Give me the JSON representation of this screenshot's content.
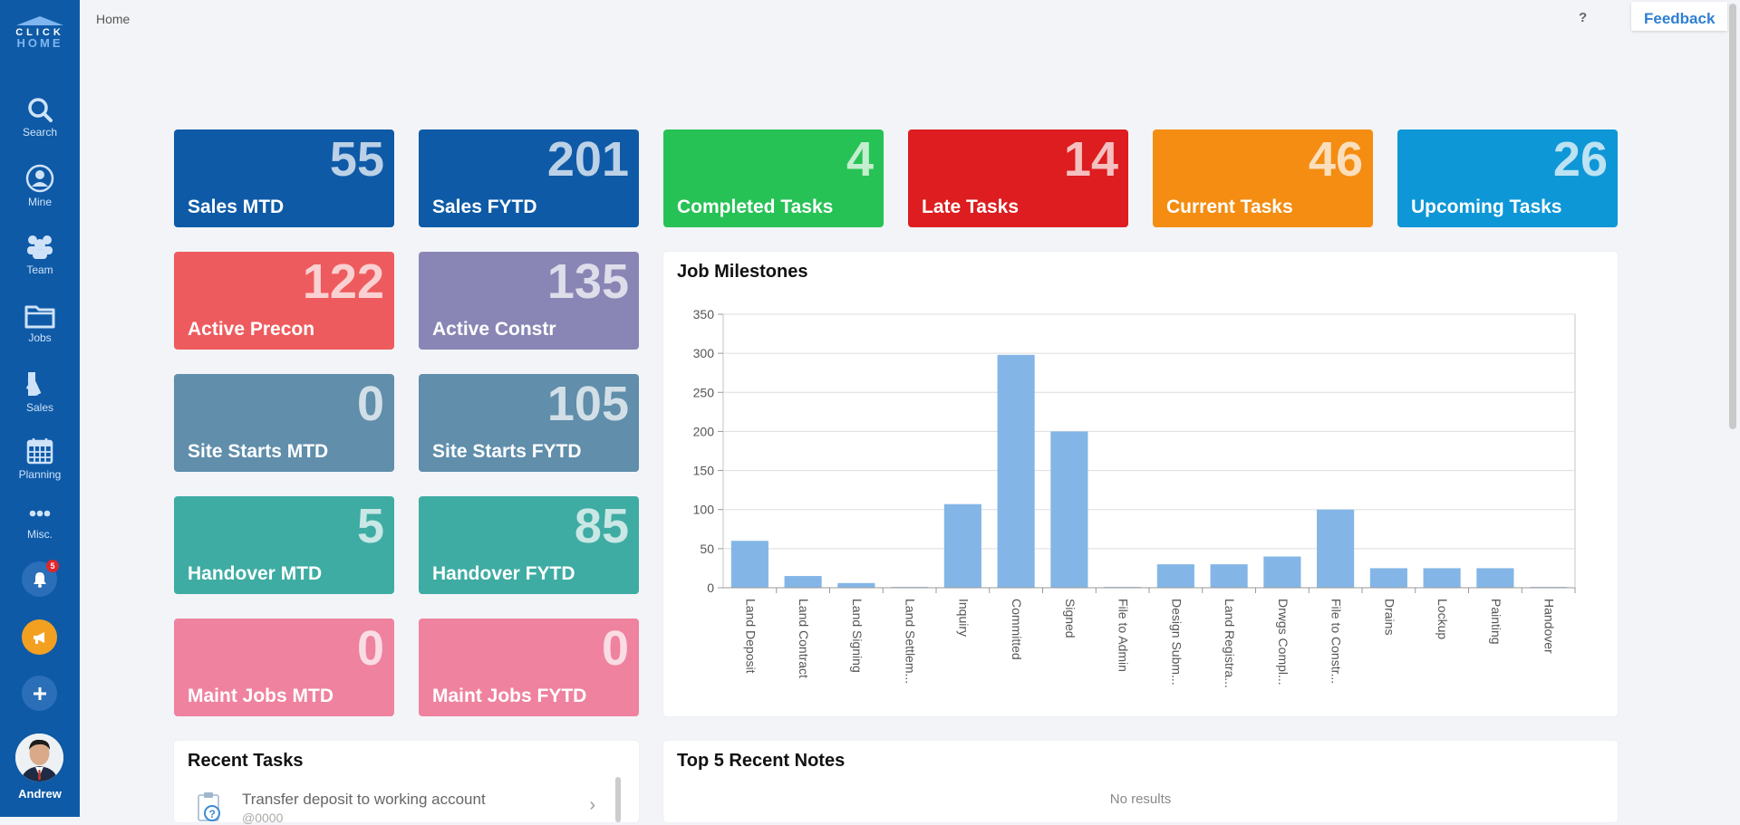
{
  "app": {
    "logo_line1": "CLICK",
    "logo_line2": "HOME"
  },
  "sidebar": {
    "items": [
      {
        "label": "Search",
        "icon": "search-icon"
      },
      {
        "label": "Mine",
        "icon": "user-icon"
      },
      {
        "label": "Team",
        "icon": "team-icon"
      },
      {
        "label": "Jobs",
        "icon": "folder-icon"
      },
      {
        "label": "Sales",
        "icon": "swatch-icon"
      },
      {
        "label": "Planning",
        "icon": "calendar-icon"
      },
      {
        "label": "Misc.",
        "icon": "more-icon"
      }
    ],
    "notification_count": "5",
    "user_name": "Andrew"
  },
  "header": {
    "breadcrumb": "Home",
    "help": "?",
    "feedback": "Feedback"
  },
  "tiles": [
    {
      "title": "Sales MTD",
      "value": "55",
      "color": "#0e5aa7"
    },
    {
      "title": "Sales FYTD",
      "value": "201",
      "color": "#0e5aa7"
    },
    {
      "title": "Completed Tasks",
      "value": "4",
      "color": "#27c255"
    },
    {
      "title": "Late Tasks",
      "value": "14",
      "color": "#dd1d1f"
    },
    {
      "title": "Current Tasks",
      "value": "46",
      "color": "#f48d12"
    },
    {
      "title": "Upcoming Tasks",
      "value": "26",
      "color": "#0e97d6"
    },
    {
      "title": "Active Precon",
      "value": "122",
      "color": "#ee5b5e"
    },
    {
      "title": "Active Constr",
      "value": "135",
      "color": "#8986b5"
    },
    {
      "title": "Site Starts MTD",
      "value": "0",
      "color": "#608eab"
    },
    {
      "title": "Site Starts FYTD",
      "value": "105",
      "color": "#608eab"
    },
    {
      "title": "Handover MTD",
      "value": "5",
      "color": "#3eaca3"
    },
    {
      "title": "Handover FYTD",
      "value": "85",
      "color": "#3eaca3"
    },
    {
      "title": "Maint Jobs MTD",
      "value": "0",
      "color": "#ef829f"
    },
    {
      "title": "Maint Jobs FYTD",
      "value": "0",
      "color": "#ef829f"
    }
  ],
  "milestones_panel": {
    "title": "Job Milestones"
  },
  "chart_data": {
    "type": "bar",
    "title": "Job Milestones",
    "categories": [
      "Land Deposit",
      "Land Contract",
      "Land Signing",
      "Land Settlem...",
      "Inquiry",
      "Committed",
      "Signed",
      "File to Admin",
      "Design Subm...",
      "Land Registra...",
      "Drwgs Compl...",
      "File to Constr...",
      "Drains",
      "Lockup",
      "Painting",
      "Handover"
    ],
    "values": [
      60,
      15,
      6,
      1,
      107,
      298,
      200,
      1,
      30,
      30,
      40,
      100,
      25,
      25,
      25,
      1
    ],
    "ylim": [
      0,
      350
    ],
    "yticks": [
      0,
      50,
      100,
      150,
      200,
      250,
      300,
      350
    ],
    "xlabel": "",
    "ylabel": "",
    "bar_color": "#83b6e6",
    "grid": true
  },
  "recent_tasks": {
    "title": "Recent Tasks",
    "items": [
      {
        "text": "Transfer deposit to working account",
        "sub": "@0000"
      }
    ]
  },
  "recent_notes": {
    "title": "Top 5 Recent Notes",
    "empty": "No results"
  }
}
